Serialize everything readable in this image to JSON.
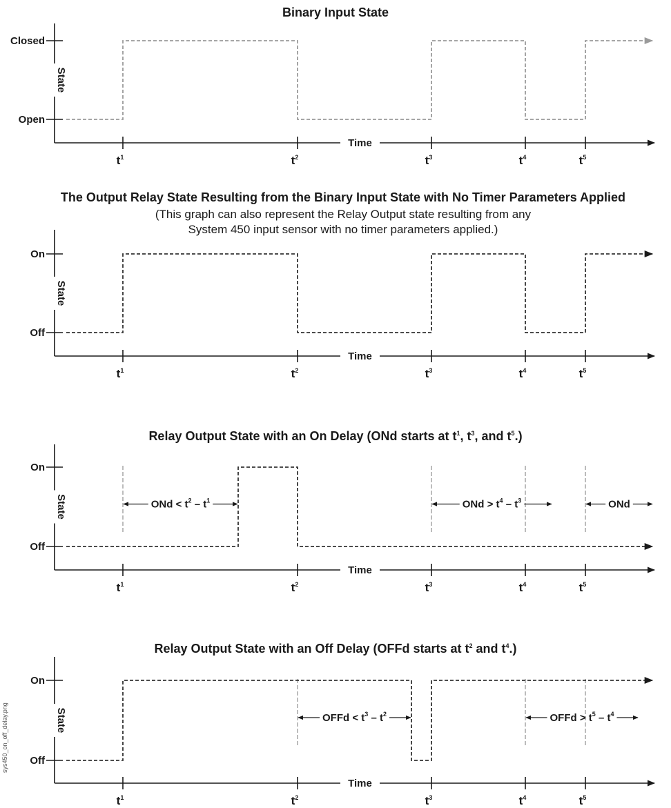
{
  "colors": {
    "ink": "#1a1a1a",
    "signal": "#333333",
    "signal_light": "#9a9a9a",
    "guide": "#a0a0a0"
  },
  "axis": {
    "x_label": "Time",
    "y_label": "State"
  },
  "time_ticks": [
    {
      "base": "t",
      "sup": "1"
    },
    {
      "base": "t",
      "sup": "2"
    },
    {
      "base": "t",
      "sup": "3"
    },
    {
      "base": "t",
      "sup": "4"
    },
    {
      "base": "t",
      "sup": "5"
    }
  ],
  "panels": [
    {
      "title": "Binary Input State",
      "subtitle": [],
      "high_label": "Closed",
      "low_label": "Open",
      "waveform": [
        [
          "start",
          "low"
        ],
        [
          "t1",
          "high"
        ],
        [
          "t2",
          "low"
        ],
        [
          "t3",
          "high"
        ],
        [
          "t4",
          "low"
        ],
        [
          "t5",
          "high"
        ]
      ],
      "guides": [],
      "annotations": []
    },
    {
      "title": "The Output Relay State Resulting from the Binary Input State with No Timer Parameters Applied",
      "subtitle": [
        "(This graph can also represent the Relay Output state resulting from any",
        "System 450 input sensor with no timer parameters applied.)"
      ],
      "high_label": "On",
      "low_label": "Off",
      "waveform": [
        [
          "start",
          "low"
        ],
        [
          "t1",
          "high"
        ],
        [
          "t2",
          "low"
        ],
        [
          "t3",
          "high"
        ],
        [
          "t4",
          "low"
        ],
        [
          "t5",
          "high"
        ]
      ],
      "guides": [],
      "annotations": []
    },
    {
      "title": "Relay Output State with an On Delay (ONd starts at t1, t3, and t5.)",
      "title_parts": [
        {
          "t": "Relay Output State with an On Delay (ONd starts at t"
        },
        {
          "sup": "1"
        },
        {
          "t": ", t"
        },
        {
          "sup": "3"
        },
        {
          "t": ", and t"
        },
        {
          "sup": "5"
        },
        {
          "t": ".)"
        }
      ],
      "subtitle": [],
      "high_label": "On",
      "low_label": "Off",
      "waveform": [
        [
          "start",
          "low"
        ],
        [
          "t1+ONd",
          "high"
        ],
        [
          "t2",
          "low"
        ]
      ],
      "guides": [
        "t1",
        "t3",
        "t4",
        "t5"
      ],
      "annotations": [
        {
          "from": "t1",
          "to": "t1+ONd",
          "parts": [
            {
              "t": "ONd < t"
            },
            {
              "sup": "2"
            },
            {
              "t": " – t"
            },
            {
              "sup": "1"
            }
          ]
        },
        {
          "from": "t3",
          "to": "t3+ONd",
          "parts": [
            {
              "t": "ONd > t"
            },
            {
              "sup": "4"
            },
            {
              "t": " – t"
            },
            {
              "sup": "3"
            }
          ]
        },
        {
          "from": "t5",
          "to": "t5+ONd",
          "parts": [
            {
              "t": "ONd"
            }
          ]
        }
      ]
    },
    {
      "title": "Relay Output State with an Off Delay (OFFd starts at t2 and t4.)",
      "title_parts": [
        {
          "t": "Relay Output State with an Off Delay (OFFd starts at t"
        },
        {
          "sup": "2"
        },
        {
          "t": " and t"
        },
        {
          "sup": "4"
        },
        {
          "t": ".)"
        }
      ],
      "subtitle": [],
      "high_label": "On",
      "low_label": "Off",
      "waveform": [
        [
          "start",
          "low"
        ],
        [
          "t1",
          "high"
        ],
        [
          "t2+OFFd",
          "low"
        ],
        [
          "t3",
          "high"
        ]
      ],
      "guides": [
        "t2",
        "t4",
        "t5"
      ],
      "annotations": [
        {
          "from": "t2",
          "to": "t2+OFFd",
          "parts": [
            {
              "t": "OFFd < t"
            },
            {
              "sup": "3"
            },
            {
              "t": " – t"
            },
            {
              "sup": "2"
            }
          ]
        },
        {
          "from": "t4",
          "to": "t4+OFFd",
          "parts": [
            {
              "t": "OFFd > t"
            },
            {
              "sup": "5"
            },
            {
              "t": " – t"
            },
            {
              "sup": "4"
            }
          ]
        }
      ]
    }
  ],
  "side_note": "sys450_on_off_delay.png"
}
